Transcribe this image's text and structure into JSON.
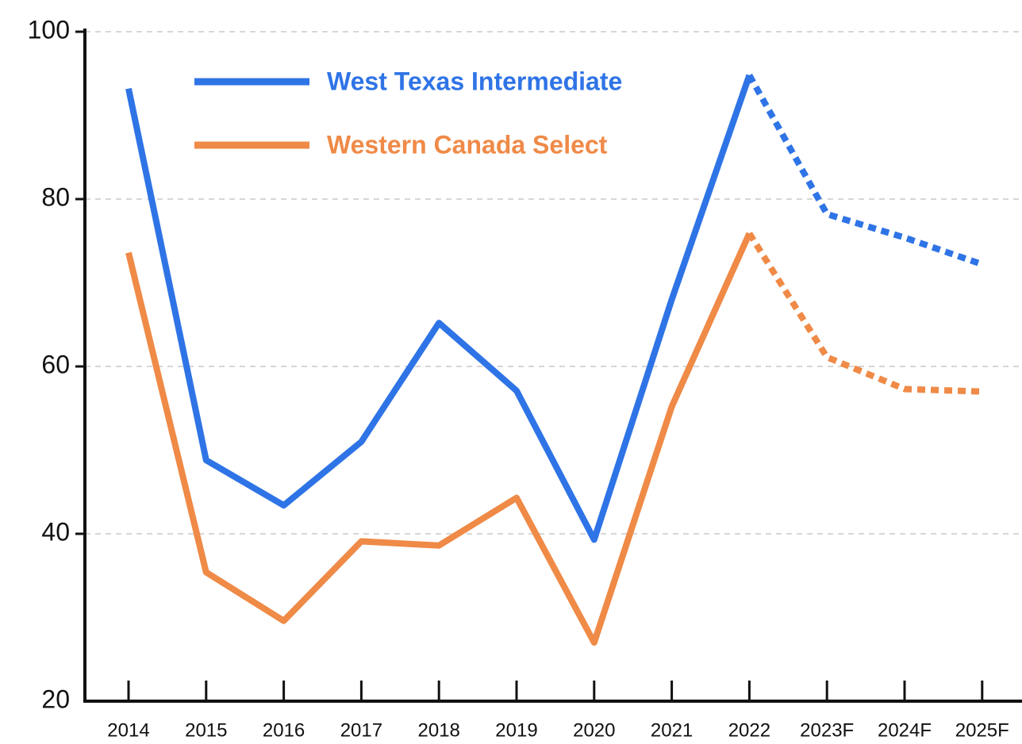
{
  "chart_data": {
    "type": "line",
    "categories": [
      "2014",
      "2015",
      "2016",
      "2017",
      "2018",
      "2019",
      "2020",
      "2021",
      "2022",
      "2023F",
      "2024F",
      "2025F"
    ],
    "series": [
      {
        "name": "West Texas Intermediate",
        "color": "#2f74e6",
        "values": [
          93.2,
          48.8,
          43.4,
          51,
          65.2,
          57.1,
          39.3,
          68,
          94.8,
          78.2,
          75.4,
          72.2
        ]
      },
      {
        "name": "Western Canada Select",
        "color": "#ef8a47",
        "values": [
          73.6,
          35.4,
          29.6,
          39.1,
          38.6,
          44.3,
          27,
          55.2,
          75.9,
          61.1,
          57.3,
          57
        ]
      }
    ],
    "forecast_start": 8,
    "ylim": [
      20,
      100
    ],
    "yticks": [
      20,
      40,
      60,
      80,
      100
    ],
    "grid": true,
    "legend": "upper left"
  }
}
